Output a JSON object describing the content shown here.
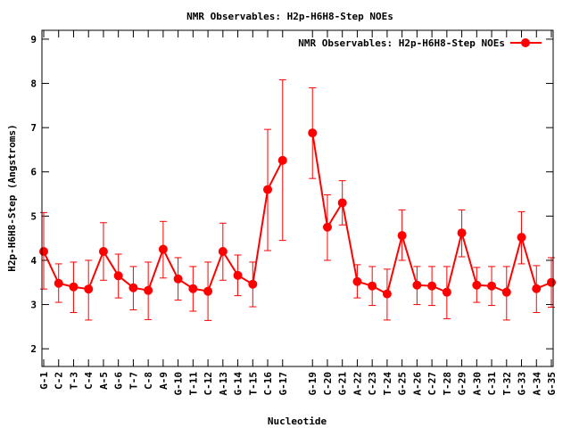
{
  "chart_data": {
    "type": "line",
    "title": "NMR Observables: H2p-H6H8-Step NOEs",
    "xlabel": "Nucleotide",
    "ylabel": "H2p-H6H8-Step (Angstroms)",
    "ylim": [
      1.6,
      9.2
    ],
    "yticks": [
      2,
      3,
      4,
      5,
      6,
      7,
      8,
      9
    ],
    "xlim": [
      0,
      34
    ],
    "legend": {
      "label": "NMR Observables: H2p-H6H8-Step NOEs",
      "position": "top-right"
    },
    "color": "#ff0000",
    "categories": [
      "G-1",
      "C-2",
      "T-3",
      "C-4",
      "A-5",
      "G-6",
      "T-7",
      "C-8",
      "A-9",
      "G-10",
      "T-11",
      "C-12",
      "A-13",
      "G-14",
      "T-15",
      "C-16",
      "G-17",
      "G-19",
      "C-20",
      "G-21",
      "A-22",
      "C-23",
      "T-24",
      "G-25",
      "A-26",
      "C-27",
      "T-28",
      "G-29",
      "A-30",
      "C-31",
      "T-32",
      "G-33",
      "A-34",
      "G-35"
    ],
    "x": [
      0,
      1,
      2,
      3,
      4,
      5,
      6,
      7,
      8,
      9,
      10,
      11,
      12,
      13,
      14,
      15,
      16,
      18,
      19,
      20,
      21,
      22,
      23,
      24,
      25,
      26,
      27,
      28,
      29,
      30,
      31,
      32,
      33,
      34
    ],
    "values": [
      4.2,
      3.48,
      3.4,
      3.35,
      4.2,
      3.65,
      3.38,
      3.32,
      4.25,
      3.58,
      3.36,
      3.3,
      4.2,
      3.66,
      3.46,
      5.6,
      6.26,
      6.88,
      4.75,
      5.3,
      3.52,
      3.42,
      3.24,
      4.56,
      3.44,
      3.42,
      3.28,
      4.62,
      3.44,
      3.42,
      3.28,
      4.52,
      3.36,
      3.5
    ],
    "err_low": [
      3.35,
      3.05,
      2.82,
      2.65,
      3.55,
      3.15,
      2.88,
      2.66,
      3.6,
      3.1,
      2.85,
      2.64,
      3.55,
      3.2,
      2.95,
      4.22,
      4.45,
      5.85,
      4.0,
      4.8,
      3.15,
      2.98,
      2.65,
      4.0,
      3.0,
      2.98,
      2.68,
      4.08,
      3.05,
      2.98,
      2.65,
      3.92,
      2.82,
      2.94
    ],
    "err_high": [
      5.08,
      3.92,
      3.96,
      4.0,
      4.85,
      4.14,
      3.86,
      3.96,
      4.88,
      4.06,
      3.86,
      3.96,
      4.84,
      4.12,
      3.96,
      6.96,
      8.08,
      7.9,
      5.48,
      5.8,
      3.9,
      3.86,
      3.8,
      5.14,
      3.86,
      3.86,
      3.86,
      5.14,
      3.84,
      3.86,
      3.86,
      5.1,
      3.88,
      4.06
    ]
  }
}
